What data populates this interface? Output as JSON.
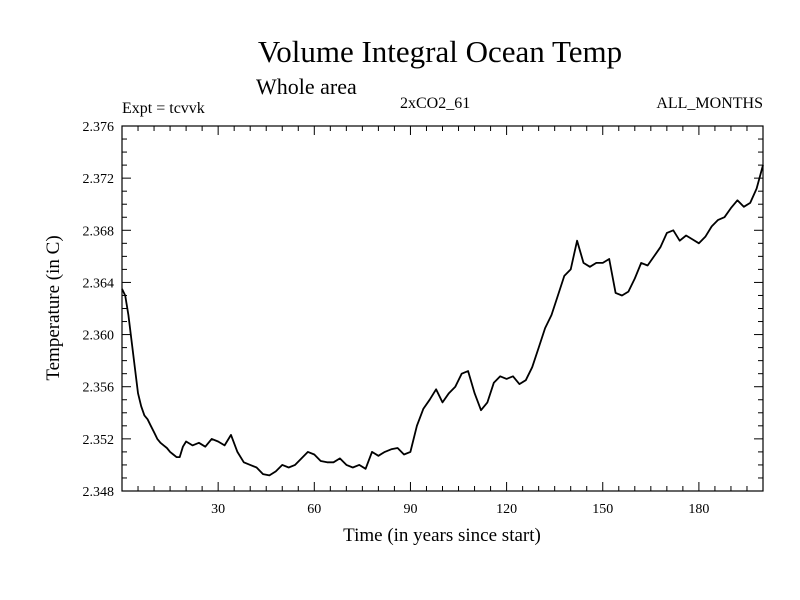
{
  "header": {
    "title": "Volume Integral Ocean Temp",
    "subtitle": "Whole area",
    "experiment": "Expt = tcvvk",
    "run": "2xCO2_61",
    "season": "ALL_MONTHS"
  },
  "chart_data": {
    "type": "line",
    "title": "Volume Integral Ocean Temp",
    "subtitle": "Whole area",
    "xlabel": "Time (in years since start)",
    "ylabel": "Temperature (in C)",
    "xlim": [
      0,
      200
    ],
    "ylim": [
      2.348,
      2.376
    ],
    "xticks": [
      30,
      60,
      90,
      120,
      150,
      180
    ],
    "yticks": [
      "2.348",
      "2.352",
      "2.356",
      "2.360",
      "2.364",
      "2.368",
      "2.372",
      "2.376"
    ],
    "grid": false,
    "series": [
      {
        "x": [
          0,
          1,
          2,
          3,
          4,
          5,
          6,
          7,
          8,
          9,
          10,
          11,
          12,
          13,
          14,
          15,
          16,
          17,
          18,
          19,
          20,
          22,
          24,
          26,
          28,
          30,
          32,
          34,
          36,
          38,
          40,
          42,
          44,
          46,
          48,
          50,
          52,
          54,
          56,
          58,
          60,
          62,
          64,
          66,
          68,
          70,
          72,
          74,
          76,
          78,
          80,
          82,
          84,
          86,
          88,
          90,
          92,
          94,
          96,
          98,
          100,
          102,
          104,
          106,
          108,
          110,
          112,
          114,
          116,
          118,
          120,
          122,
          124,
          126,
          128,
          130,
          132,
          134,
          136,
          138,
          140,
          142,
          144,
          146,
          148,
          150,
          152,
          154,
          156,
          158,
          160,
          162,
          164,
          166,
          168,
          170,
          172,
          174,
          176,
          178,
          180,
          182,
          184,
          186,
          188,
          190,
          192,
          194,
          196,
          198,
          200
        ],
        "y": [
          2.3635,
          2.363,
          2.3615,
          2.3595,
          2.3575,
          2.3555,
          2.3545,
          2.3538,
          2.3535,
          2.353,
          2.3525,
          2.352,
          2.3517,
          2.3515,
          2.3513,
          2.351,
          2.3508,
          2.3506,
          2.3506,
          2.3514,
          2.3518,
          2.3515,
          2.3517,
          2.3514,
          2.352,
          2.3518,
          2.3515,
          2.3523,
          2.351,
          2.3502,
          2.35,
          2.3498,
          2.3493,
          2.3492,
          2.3495,
          2.35,
          2.3498,
          2.35,
          2.3505,
          2.351,
          2.3508,
          2.3503,
          2.3502,
          2.3502,
          2.3505,
          2.35,
          2.3498,
          2.35,
          2.3497,
          2.351,
          2.3507,
          2.351,
          2.3512,
          2.3513,
          2.3508,
          2.351,
          2.353,
          2.3543,
          2.355,
          2.3558,
          2.3548,
          2.3555,
          2.356,
          2.357,
          2.3572,
          2.3555,
          2.3542,
          2.3548,
          2.3563,
          2.3568,
          2.3566,
          2.3568,
          2.3562,
          2.3565,
          2.3575,
          2.359,
          2.3605,
          2.3615,
          2.363,
          2.3645,
          2.365,
          2.3672,
          2.3655,
          2.3652,
          2.3655,
          2.3655,
          2.3658,
          2.3632,
          2.363,
          2.3633,
          2.3643,
          2.3655,
          2.3653,
          2.366,
          2.3667,
          2.3678,
          2.368,
          2.3672,
          2.3676,
          2.3673,
          2.367,
          2.3675,
          2.3683,
          2.3688,
          2.369,
          2.3697,
          2.3703,
          2.3698,
          2.3701,
          2.3712,
          2.373
        ]
      }
    ]
  }
}
